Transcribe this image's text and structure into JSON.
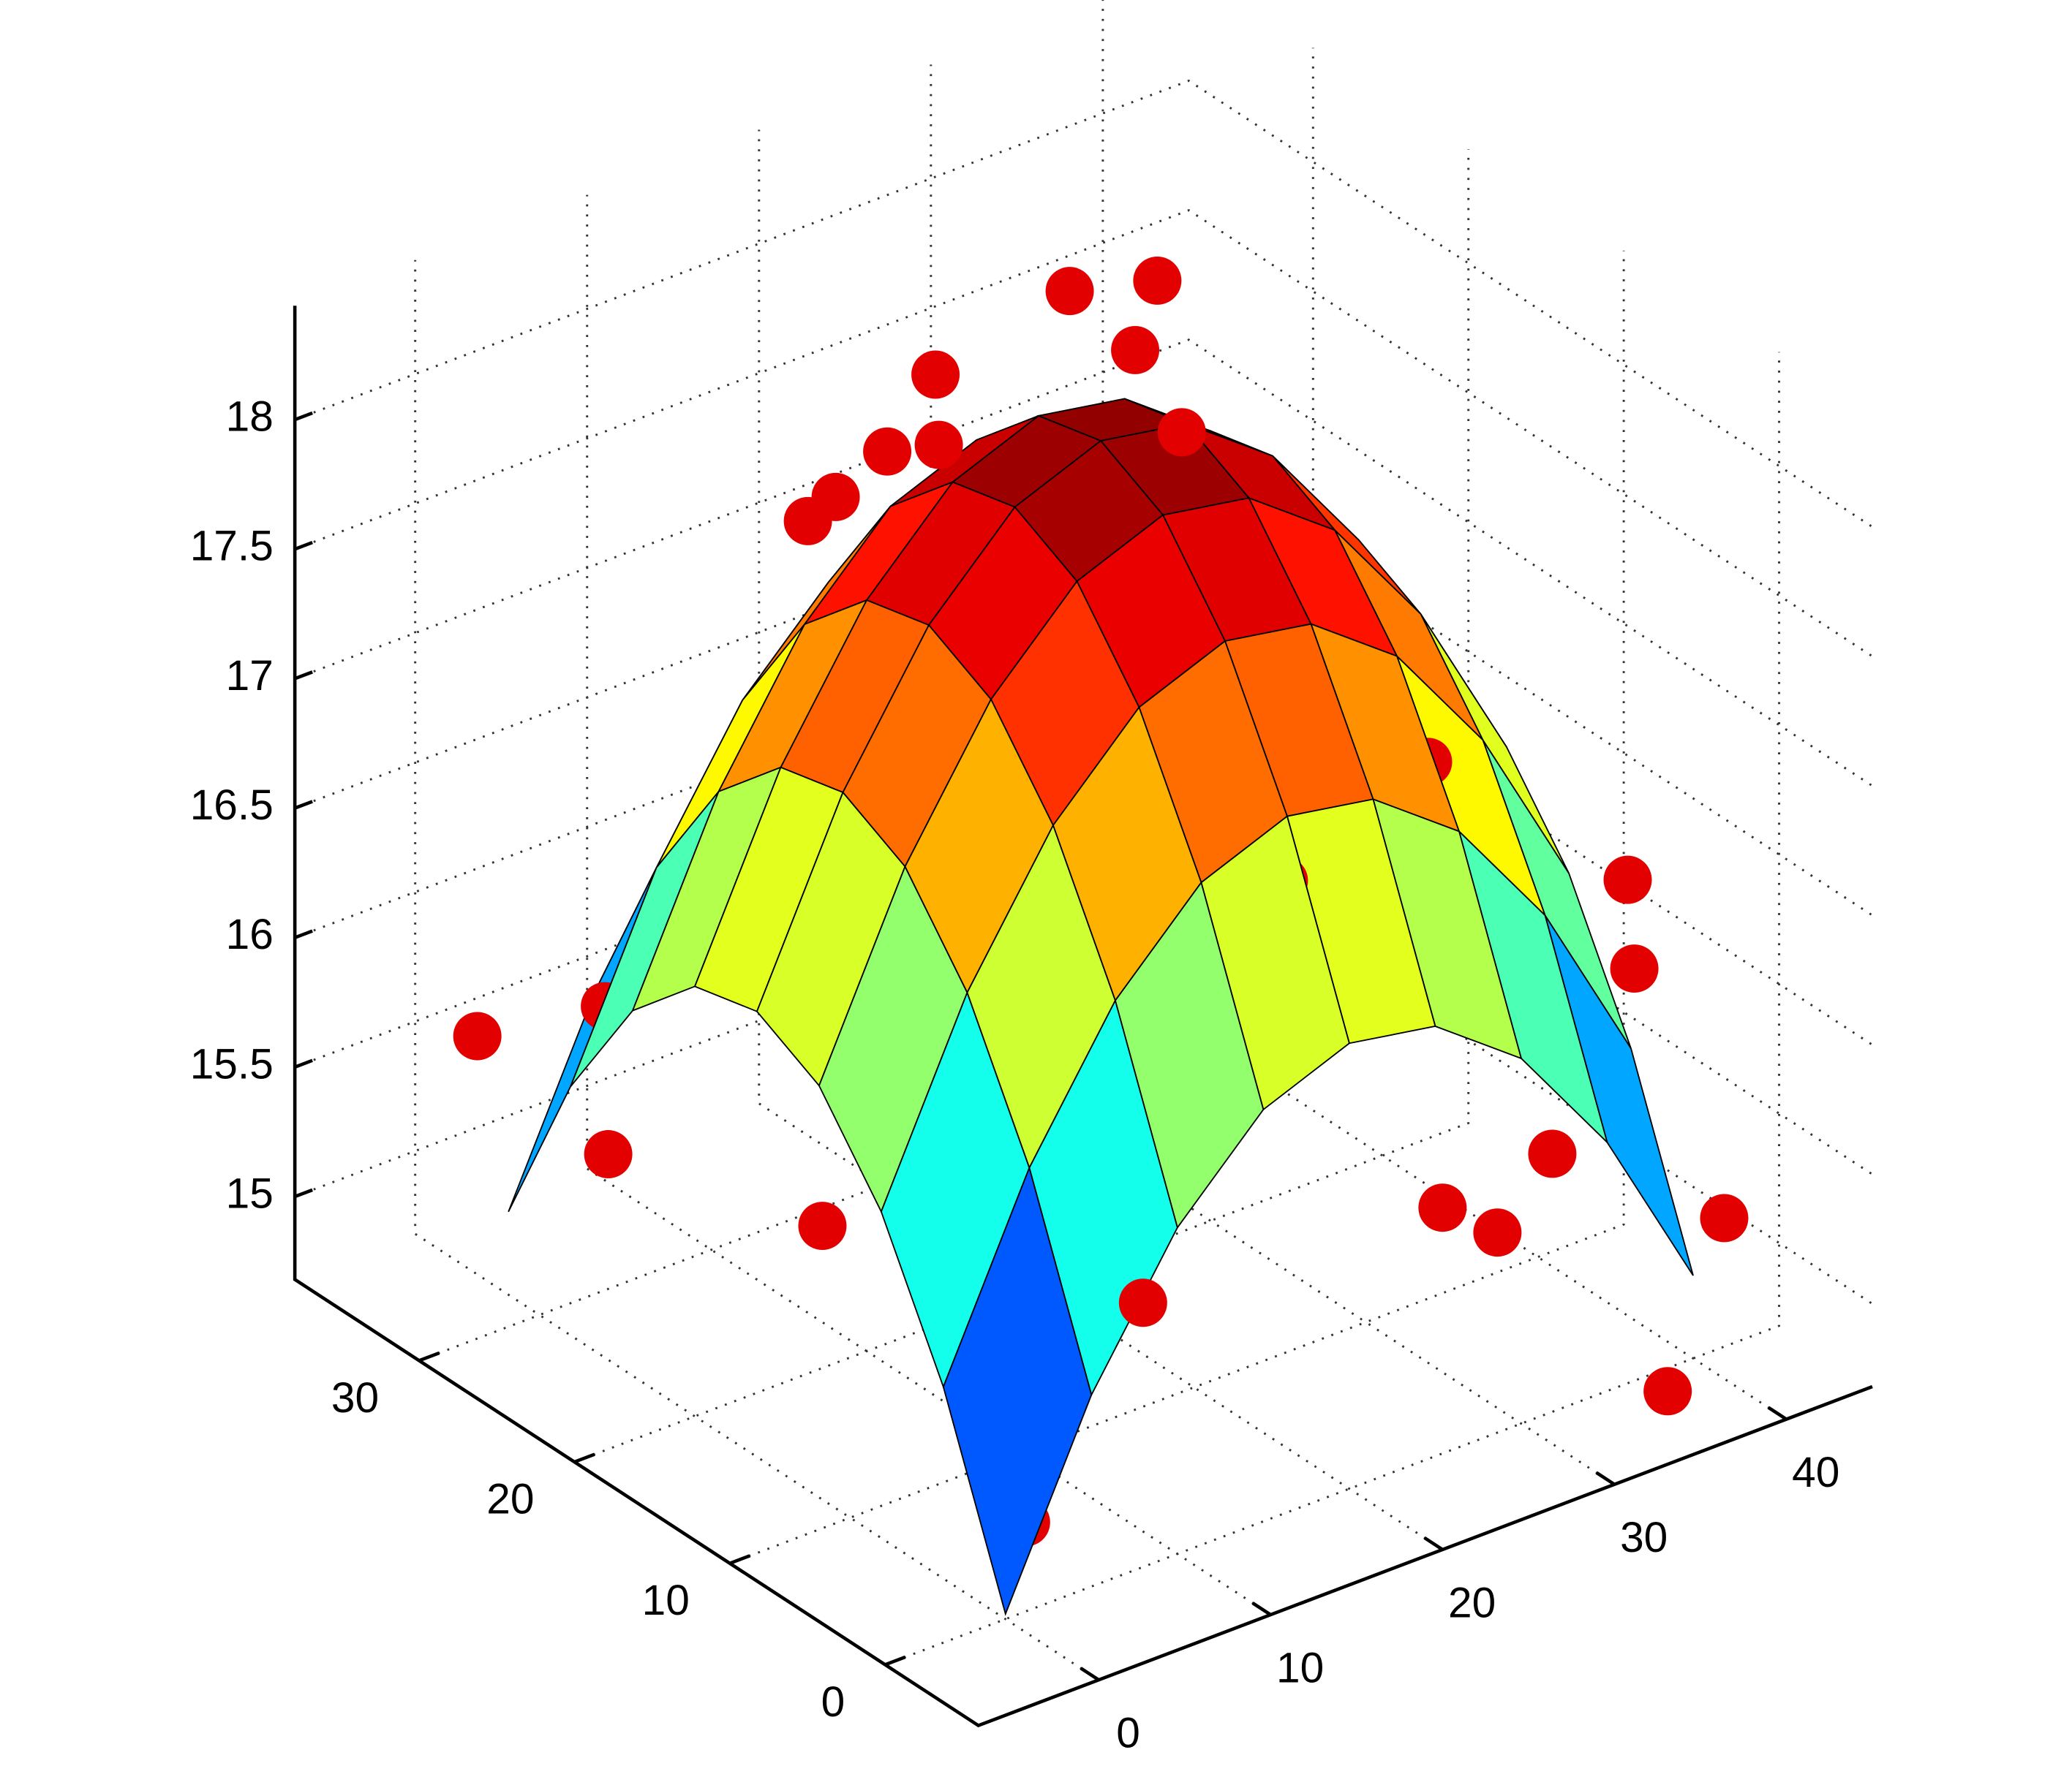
{
  "chart_data": {
    "type": "surface",
    "colormap": "jet",
    "edge_color": "#000000",
    "x": [
      0,
      5,
      10,
      15,
      20,
      25,
      30,
      35,
      40
    ],
    "y": [
      0,
      4,
      8,
      12,
      16,
      20,
      24,
      28,
      32
    ],
    "z": [
      [
        14.7,
        15.42,
        15.94,
        16.27,
        16.4,
        16.34,
        16.09,
        15.64,
        15.0
      ],
      [
        15.42,
        16.14,
        16.66,
        16.99,
        17.12,
        17.06,
        16.81,
        16.36,
        15.72
      ],
      [
        15.94,
        16.66,
        17.18,
        17.51,
        17.64,
        17.58,
        17.33,
        16.88,
        16.24
      ],
      [
        16.27,
        16.99,
        17.51,
        17.84,
        17.97,
        17.91,
        17.66,
        17.21,
        16.57
      ],
      [
        16.4,
        17.12,
        17.64,
        17.97,
        18.1,
        18.04,
        17.79,
        17.34,
        16.7
      ],
      [
        16.34,
        17.06,
        17.58,
        17.91,
        18.04,
        17.98,
        17.73,
        17.28,
        16.64
      ],
      [
        16.09,
        16.81,
        17.33,
        17.66,
        17.79,
        17.73,
        17.48,
        17.03,
        16.39
      ],
      [
        15.64,
        16.36,
        16.88,
        17.21,
        17.34,
        17.28,
        17.03,
        16.58,
        15.94
      ],
      [
        15.0,
        15.72,
        16.24,
        16.57,
        16.7,
        16.64,
        16.39,
        15.94,
        15.3
      ]
    ],
    "points": {
      "color": "#e30000",
      "x": [
        20,
        14,
        22,
        26,
        22,
        10,
        13,
        16,
        12,
        30,
        26,
        32,
        30,
        36,
        42,
        38,
        40,
        30,
        25,
        34,
        2,
        0,
        4,
        6,
        10,
        5,
        10,
        14,
        8,
        3,
        18,
        2,
        20
      ],
      "y": [
        18,
        20,
        16,
        19,
        13,
        22,
        22,
        22,
        26,
        20,
        12,
        12,
        6,
        10,
        6,
        2,
        -2,
        -2,
        -4,
        -5,
        28,
        34,
        30,
        16,
        14,
        8,
        6,
        4,
        0,
        2,
        2,
        14,
        -6
      ],
      "z": [
        18.6,
        18.35,
        18.4,
        18.45,
        18.2,
        17.9,
        18.0,
        17.95,
        17.6,
        17.5,
        17.7,
        16.9,
        17.0,
        16.6,
        15.9,
        16.5,
        15.3,
        15.8,
        15.7,
        14.9,
        15.9,
        15.6,
        15.2,
        16.4,
        16.7,
        16.2,
        16.4,
        16.7,
        15.7,
        14.9,
        17.0,
        15.6,
        16.0
      ]
    },
    "xlim": [
      -7,
      45
    ],
    "ylim": [
      -6,
      38
    ],
    "zlim": [
      14.68,
      18.44
    ],
    "xticks": [
      0,
      10,
      20,
      30,
      40
    ],
    "yticks": [
      0,
      10,
      20,
      30
    ],
    "zticks": [
      15,
      15.5,
      16,
      16.5,
      17,
      17.5,
      18
    ],
    "grid": true
  }
}
